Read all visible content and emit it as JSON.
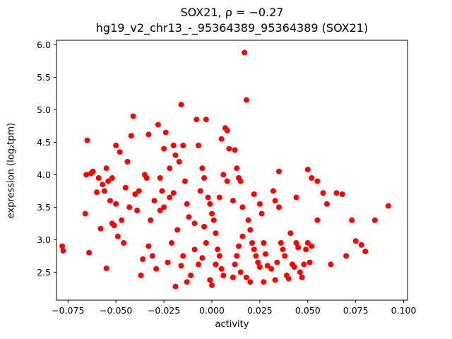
{
  "title": "SOX21, ρ = −0.27",
  "subtitle": "hg19_v2_chr13_-_95364389_95364389 (SOX21)",
  "chart_data": {
    "type": "scatter",
    "title": "SOX21, ρ = −0.27",
    "subtitle": "hg19_v2_chr13_-_95364389_95364389 (SOX21)",
    "xlabel": "activity",
    "ylabel": "expression (log₂tpm)",
    "correlation_rho": -0.27,
    "marker_color": "#ff0000",
    "marker_radius": 4,
    "grid": false,
    "legend": "none",
    "xlim": [
      -0.081,
      0.102
    ],
    "ylim": [
      2.07,
      6.07
    ],
    "xticks": [
      -0.075,
      -0.05,
      -0.025,
      0.0,
      0.025,
      0.05,
      0.075,
      0.1
    ],
    "xtick_labels": [
      "−0.075",
      "−0.050",
      "−0.025",
      "0.000",
      "0.025",
      "0.050",
      "0.075",
      "0.100"
    ],
    "yticks": [
      2.5,
      3.0,
      3.5,
      4.0,
      4.5,
      5.0,
      5.5,
      6.0
    ],
    "ytick_labels": [
      "2.5",
      "3.0",
      "3.5",
      "4.0",
      "4.5",
      "5.0",
      "5.5",
      "6.0"
    ],
    "points": [
      [
        -0.078,
        2.9
      ],
      [
        -0.0775,
        2.83
      ],
      [
        -0.065,
        4.53
      ],
      [
        -0.0655,
        4.0
      ],
      [
        -0.063,
        4.02
      ],
      [
        -0.062,
        4.05
      ],
      [
        -0.066,
        3.4
      ],
      [
        -0.064,
        2.8
      ],
      [
        -0.06,
        3.73
      ],
      [
        -0.059,
        3.95
      ],
      [
        -0.057,
        3.85
      ],
      [
        -0.056,
        3.75
      ],
      [
        -0.055,
        4.1
      ],
      [
        -0.054,
        3.9
      ],
      [
        -0.053,
        3.6
      ],
      [
        -0.052,
        3.25
      ],
      [
        -0.051,
        3.22
      ],
      [
        -0.058,
        3.17
      ],
      [
        -0.055,
        2.56
      ],
      [
        -0.05,
        4.45
      ],
      [
        -0.05,
        3.55
      ],
      [
        -0.052,
        3.95
      ],
      [
        -0.048,
        4.35
      ],
      [
        -0.041,
        4.9
      ],
      [
        -0.042,
        4.6
      ],
      [
        -0.044,
        4.2
      ],
      [
        -0.045,
        3.8
      ],
      [
        -0.043,
        3.5
      ],
      [
        -0.04,
        3.7
      ],
      [
        -0.039,
        3.45
      ],
      [
        -0.038,
        3.75
      ],
      [
        -0.047,
        3.3
      ],
      [
        -0.046,
        2.95
      ],
      [
        -0.035,
        4.0
      ],
      [
        -0.034,
        3.95
      ],
      [
        -0.033,
        4.62
      ],
      [
        -0.032,
        3.3
      ],
      [
        -0.031,
        2.75
      ],
      [
        -0.037,
        2.45
      ],
      [
        -0.036,
        2.7
      ],
      [
        -0.049,
        3.05
      ],
      [
        -0.03,
        3.6
      ],
      [
        -0.033,
        2.9
      ],
      [
        -0.028,
        4.77
      ],
      [
        -0.024,
        4.65
      ],
      [
        -0.025,
        4.4
      ],
      [
        -0.027,
        3.95
      ],
      [
        -0.026,
        3.75
      ],
      [
        -0.022,
        4.1
      ],
      [
        -0.02,
        4.45
      ],
      [
        -0.019,
        4.3
      ],
      [
        -0.016,
        5.08
      ],
      [
        -0.015,
        4.45
      ],
      [
        -0.017,
        4.2
      ],
      [
        -0.014,
        3.9
      ],
      [
        -0.013,
        3.55
      ],
      [
        -0.012,
        3.35
      ],
      [
        -0.018,
        3.15
      ],
      [
        -0.021,
        2.95
      ],
      [
        -0.023,
        2.65
      ],
      [
        -0.029,
        2.55
      ],
      [
        -0.011,
        2.45
      ],
      [
        -0.013,
        2.35
      ],
      [
        -0.019,
        2.28
      ],
      [
        -0.025,
        3.5
      ],
      [
        -0.027,
        3.45
      ],
      [
        -0.015,
        2.75
      ],
      [
        -0.016,
        2.6
      ],
      [
        -0.02,
        3.72
      ],
      [
        -0.022,
        3.65
      ],
      [
        -0.008,
        4.85
      ],
      [
        -0.003,
        4.85
      ],
      [
        -0.007,
        4.45
      ],
      [
        -0.005,
        4.1
      ],
      [
        -0.004,
        3.95
      ],
      [
        -0.006,
        3.75
      ],
      [
        -0.002,
        3.65
      ],
      [
        -0.001,
        3.55
      ],
      [
        0.0,
        3.4
      ],
      [
        0.001,
        3.3
      ],
      [
        -0.009,
        3.25
      ],
      [
        0.002,
        3.1
      ],
      [
        -0.003,
        2.95
      ],
      [
        0.003,
        2.85
      ],
      [
        0.004,
        2.75
      ],
      [
        -0.005,
        2.72
      ],
      [
        -0.007,
        2.62
      ],
      [
        0.005,
        2.55
      ],
      [
        0.006,
        2.45
      ],
      [
        -0.001,
        2.38
      ],
      [
        0.0,
        2.3
      ],
      [
        0.007,
        4.72
      ],
      [
        0.008,
        4.68
      ],
      [
        0.005,
        4.55
      ],
      [
        0.009,
        4.4
      ],
      [
        0.006,
        4.0
      ],
      [
        0.008,
        3.9
      ],
      [
        0.004,
        3.65
      ],
      [
        0.002,
        2.62
      ],
      [
        -0.009,
        2.85
      ],
      [
        -0.004,
        3.2
      ],
      [
        0.017,
        5.88
      ],
      [
        0.018,
        5.15
      ],
      [
        0.012,
        4.38
      ],
      [
        0.013,
        4.1
      ],
      [
        0.014,
        3.95
      ],
      [
        0.015,
        3.9
      ],
      [
        0.011,
        3.6
      ],
      [
        0.016,
        3.5
      ],
      [
        0.019,
        3.3
      ],
      [
        0.02,
        3.15
      ],
      [
        0.021,
        2.95
      ],
      [
        0.022,
        2.85
      ],
      [
        0.023,
        2.75
      ],
      [
        0.024,
        2.65
      ],
      [
        0.025,
        3.55
      ],
      [
        0.026,
        3.4
      ],
      [
        0.027,
        2.95
      ],
      [
        0.028,
        2.78
      ],
      [
        0.029,
        2.6
      ],
      [
        0.013,
        2.75
      ],
      [
        0.012,
        2.62
      ],
      [
        0.015,
        2.5
      ],
      [
        0.018,
        2.42
      ],
      [
        0.02,
        2.35
      ],
      [
        0.025,
        2.58
      ],
      [
        0.016,
        3.05
      ],
      [
        0.014,
        2.9
      ],
      [
        0.022,
        3.7
      ],
      [
        0.011,
        2.42
      ],
      [
        0.027,
        2.35
      ],
      [
        0.032,
        3.75
      ],
      [
        0.033,
        3.6
      ],
      [
        0.035,
        3.5
      ],
      [
        0.036,
        2.95
      ],
      [
        0.037,
        2.85
      ],
      [
        0.038,
        2.75
      ],
      [
        0.034,
        2.65
      ],
      [
        0.031,
        2.55
      ],
      [
        0.039,
        2.45
      ],
      [
        0.04,
        2.4
      ],
      [
        0.042,
        2.62
      ],
      [
        0.043,
        2.58
      ],
      [
        0.044,
        2.95
      ],
      [
        0.045,
        2.88
      ],
      [
        0.041,
        3.1
      ],
      [
        0.046,
        2.5
      ],
      [
        0.047,
        2.42
      ],
      [
        0.048,
        2.62
      ],
      [
        0.035,
        4.05
      ],
      [
        0.033,
        2.38
      ],
      [
        0.044,
        3.65
      ],
      [
        0.049,
        2.85
      ],
      [
        0.05,
        4.08
      ],
      [
        0.052,
        3.95
      ],
      [
        0.055,
        3.9
      ],
      [
        0.058,
        3.72
      ],
      [
        0.06,
        3.55
      ],
      [
        0.065,
        3.72
      ],
      [
        0.068,
        3.7
      ],
      [
        0.05,
        2.95
      ],
      [
        0.052,
        2.9
      ],
      [
        0.051,
        2.65
      ],
      [
        0.055,
        3.3
      ],
      [
        0.073,
        3.3
      ],
      [
        0.075,
        2.98
      ],
      [
        0.078,
        2.92
      ],
      [
        0.08,
        2.82
      ],
      [
        0.085,
        3.3
      ],
      [
        0.092,
        3.52
      ],
      [
        0.07,
        2.75
      ],
      [
        0.062,
        2.62
      ]
    ]
  }
}
